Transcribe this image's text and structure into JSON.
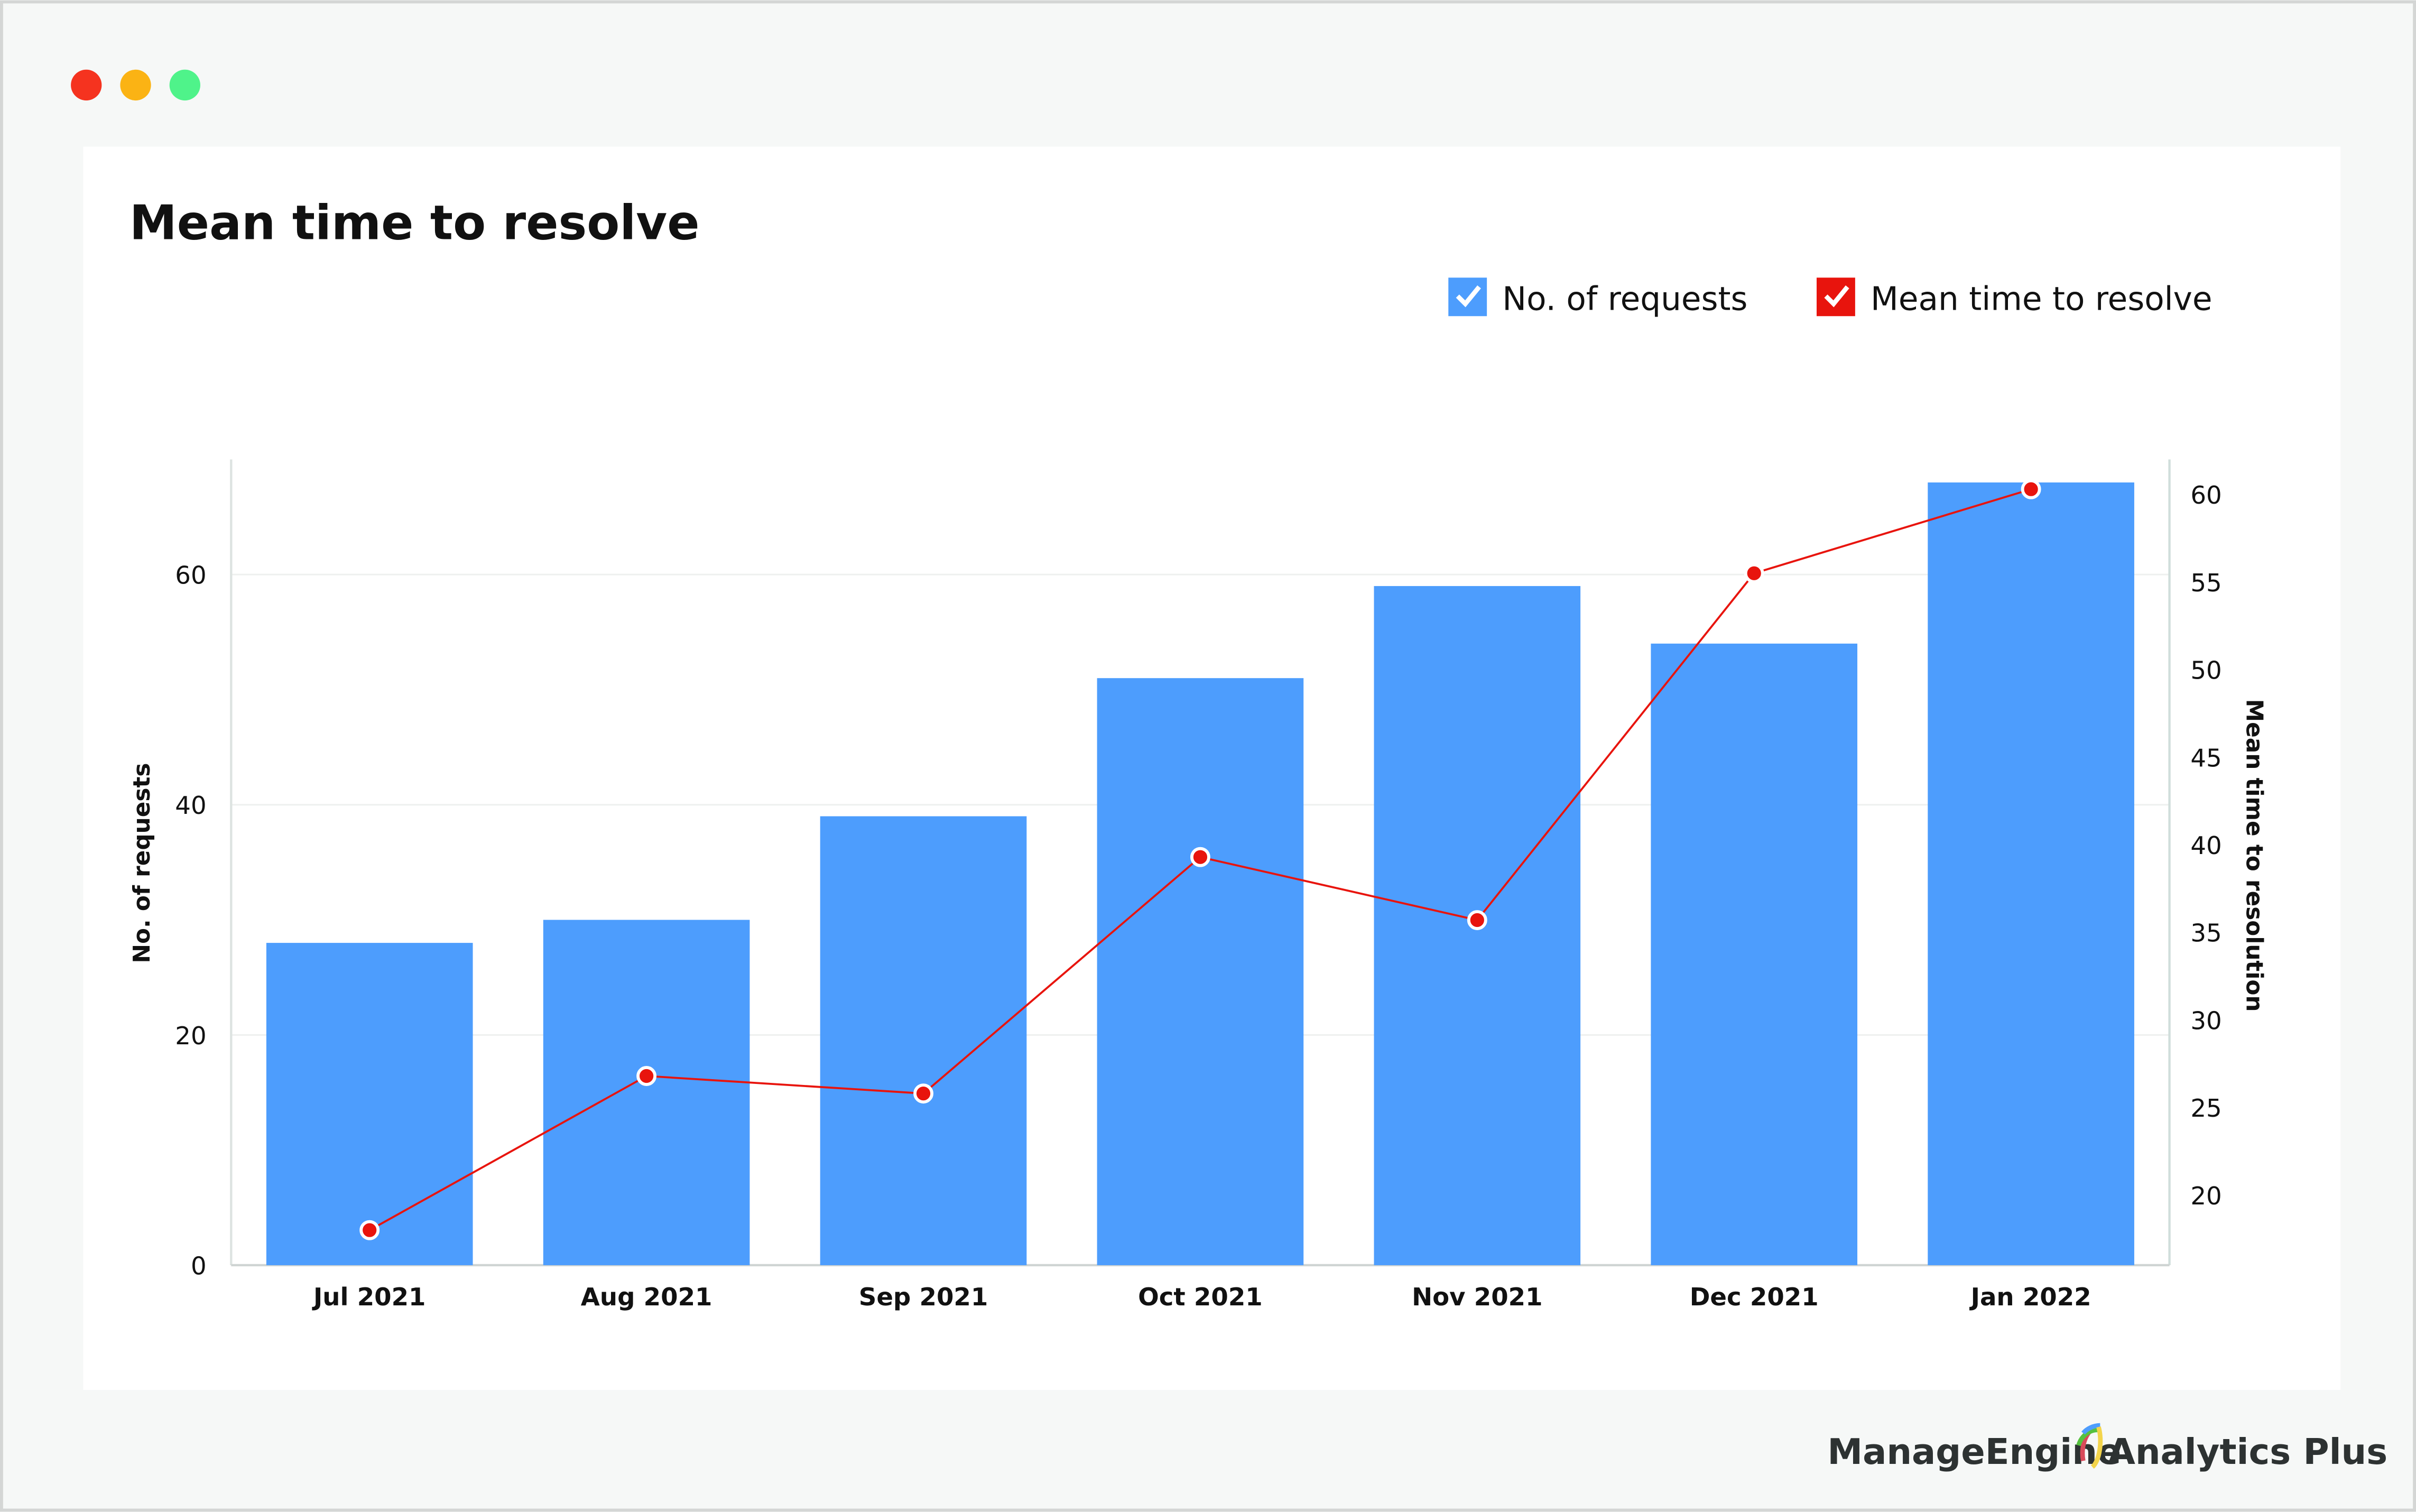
{
  "window": {
    "controls": [
      "close",
      "minimize",
      "maximize"
    ],
    "control_colors": [
      "#f5331f",
      "#fbb314",
      "#4ff38a"
    ]
  },
  "footer": {
    "brand": "ManageEngine",
    "product": "Analytics Plus"
  },
  "chart_data": {
    "type": "bar+line",
    "title": "Mean time to resolve",
    "categories": [
      "Jul 2021",
      "Aug 2021",
      "Sep 2021",
      "Oct 2021",
      "Nov 2021",
      "Dec 2021",
      "Jan 2022"
    ],
    "series": [
      {
        "name": "No. of requests",
        "type": "bar",
        "axis": "left",
        "color": "#4d9dfd",
        "values": [
          28,
          30,
          39,
          51,
          59,
          54,
          68
        ]
      },
      {
        "name": "Mean time to resolve",
        "type": "line",
        "axis": "right",
        "color": "#e8140d",
        "values": [
          18,
          26.8,
          25.8,
          39.3,
          35.7,
          55.5,
          60.3
        ]
      }
    ],
    "ylabel": "No. of requests",
    "y2label": "Mean time to resolution",
    "ylim": [
      0,
      70
    ],
    "y2lim": [
      16,
      62
    ],
    "yticks": [
      "0",
      "20",
      "40",
      "60"
    ],
    "y2ticks": [
      "20",
      "25",
      "30",
      "35",
      "40",
      "45",
      "50",
      "55",
      "60"
    ],
    "grid": true,
    "legend": {
      "position": "top-right",
      "entries": [
        "No. of requests",
        "Mean time to resolve"
      ]
    }
  }
}
